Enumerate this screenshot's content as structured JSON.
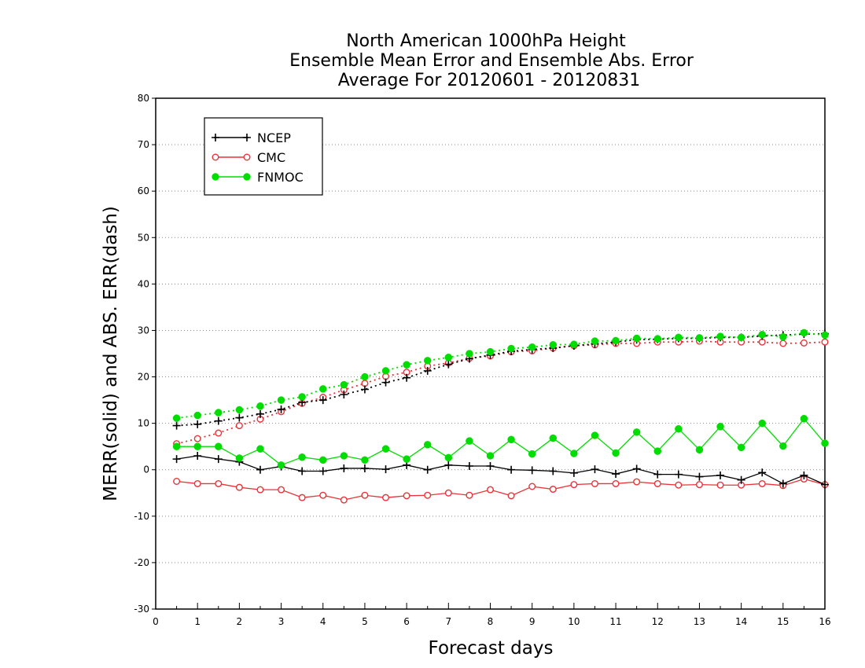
{
  "chart_data": {
    "type": "line",
    "title_lines": [
      "North American 1000hPa Height",
      "Ensemble Mean Error and Ensemble Abs. Error",
      "Average For 20120601 - 20120831"
    ],
    "xlabel": "Forecast days",
    "ylabel": "MERR(solid) and ABS. ERR(dash)",
    "xlim": [
      0,
      16
    ],
    "ylim": [
      -30,
      80
    ],
    "x_ticks": [
      0,
      1,
      2,
      3,
      4,
      5,
      6,
      7,
      8,
      9,
      10,
      11,
      12,
      13,
      14,
      15,
      16
    ],
    "y_ticks": [
      -30,
      -20,
      -10,
      0,
      10,
      20,
      30,
      40,
      50,
      60,
      70,
      80
    ],
    "grid": "horizontal dotted",
    "legend_position": "top-left",
    "x": [
      0.5,
      1,
      1.5,
      2,
      2.5,
      3,
      3.5,
      4,
      4.5,
      5,
      5.5,
      6,
      6.5,
      7,
      7.5,
      8,
      8.5,
      9,
      9.5,
      10,
      10.5,
      11,
      11.5,
      12,
      12.5,
      13,
      13.5,
      14,
      14.5,
      15,
      15.5,
      16
    ],
    "series": [
      {
        "name": "NCEP",
        "color": "#000000",
        "marker": "plus",
        "mean_error": [
          2.3,
          3.0,
          2.3,
          1.7,
          0.0,
          0.7,
          -0.3,
          -0.3,
          0.3,
          0.3,
          0.1,
          1.0,
          0.0,
          1.0,
          0.8,
          0.8,
          0.0,
          -0.1,
          -0.3,
          -0.7,
          0.1,
          -0.9,
          0.2,
          -1.0,
          -1.0,
          -1.5,
          -1.2,
          -2.2,
          -0.6,
          -3.0,
          -1.2,
          -3.2
        ],
        "abs_error": [
          9.5,
          9.8,
          10.5,
          11.2,
          12.0,
          13.0,
          14.5,
          15.0,
          16.2,
          17.3,
          18.8,
          19.8,
          21.3,
          22.7,
          23.9,
          24.7,
          25.5,
          25.9,
          26.2,
          26.7,
          27.1,
          27.5,
          28.0,
          28.1,
          28.3,
          28.3,
          28.5,
          28.5,
          28.8,
          29.0,
          29.2,
          29.3
        ]
      },
      {
        "name": "CMC",
        "color": "#e8333a",
        "marker": "open-circle",
        "mean_error": [
          -2.5,
          -3.0,
          -3.0,
          -3.8,
          -4.3,
          -4.3,
          -6.0,
          -5.5,
          -6.5,
          -5.5,
          -6.0,
          -5.6,
          -5.5,
          -5.0,
          -5.5,
          -4.3,
          -5.6,
          -3.6,
          -4.2,
          -3.2,
          -3.0,
          -3.0,
          -2.6,
          -3.0,
          -3.3,
          -3.2,
          -3.3,
          -3.3,
          -3.0,
          -3.4,
          -2.0,
          -3.2
        ],
        "abs_error": [
          5.6,
          6.7,
          7.9,
          9.5,
          10.9,
          12.5,
          14.3,
          15.6,
          17.2,
          18.6,
          20.1,
          21.0,
          22.3,
          23.0,
          24.0,
          24.5,
          25.4,
          25.6,
          26.2,
          26.7,
          26.9,
          27.2,
          27.2,
          27.5,
          27.5,
          27.7,
          27.5,
          27.5,
          27.5,
          27.2,
          27.3,
          27.5
        ]
      },
      {
        "name": "FNMOC",
        "color": "#00dd00",
        "marker": "filled-circle",
        "mean_error": [
          5.0,
          5.0,
          5.0,
          2.5,
          4.5,
          1.0,
          2.7,
          2.1,
          3.0,
          2.1,
          4.5,
          2.3,
          5.4,
          2.6,
          6.2,
          3.0,
          6.5,
          3.4,
          6.8,
          3.5,
          7.4,
          3.6,
          8.1,
          4.0,
          8.8,
          4.3,
          9.3,
          4.8,
          10.0,
          5.1,
          11.0,
          5.7
        ]
      }
    ],
    "abs_error_fnmoc": [
      11.1,
      11.7,
      12.3,
      12.9,
      13.7,
      15.0,
      15.7,
      17.4,
      18.3,
      20.0,
      21.3,
      22.6,
      23.5,
      24.2,
      25.0,
      25.4,
      26.1,
      26.4,
      26.9,
      27.0,
      27.7,
      27.8,
      28.3,
      28.2,
      28.5,
      28.4,
      28.7,
      28.5,
      29.1,
      28.6,
      29.5,
      29.0
    ]
  }
}
